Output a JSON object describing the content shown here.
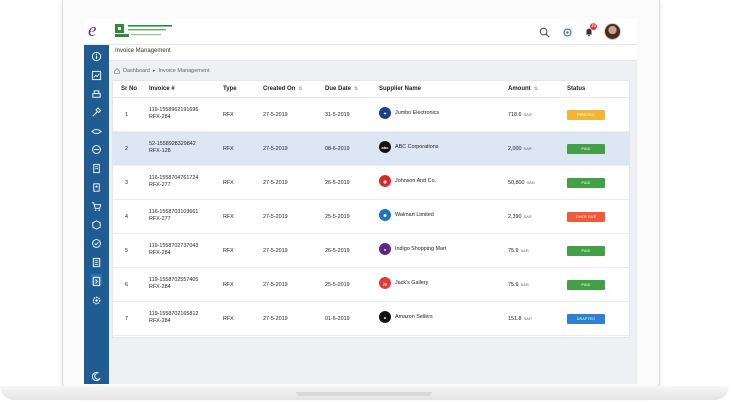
{
  "app": {
    "brand_letter": "e",
    "page_title": "Invoice Management"
  },
  "breadcrumb": {
    "items": [
      "Dashboard",
      "Invoice Management"
    ]
  },
  "notifications": {
    "count": "10"
  },
  "table": {
    "headers": [
      "Sr No",
      "Invoice #",
      "Type",
      "Created On",
      "Due Date",
      "Supplier Name",
      "Amount",
      "Status"
    ],
    "rows": [
      {
        "sr": "1",
        "inv1": "119-1558962191696",
        "inv2": "RFX-284",
        "type": "RFX",
        "created": "27-5-2019",
        "due": "31-5-2019",
        "supplier": "Jumbo Electronics",
        "amount": "718.6",
        "currency": "SAR",
        "status": "PENDING"
      },
      {
        "sr": "2",
        "inv1": "52-1558928329842",
        "inv2": "RFX-128",
        "type": "RFX",
        "created": "27-5-2019",
        "due": "08-6-2019",
        "supplier": "ABC Corporations",
        "amount": "2,000",
        "currency": "SAR",
        "status": "PAID"
      },
      {
        "sr": "3",
        "inv1": "116-1558704761724",
        "inv2": "RFX-277",
        "type": "RFX",
        "created": "27-5-2019",
        "due": "26-5-2019",
        "supplier": "Johnson And Co.",
        "amount": "50,800",
        "currency": "SAR",
        "status": "PAID"
      },
      {
        "sr": "4",
        "inv1": "116-1558703103661",
        "inv2": "RFX-277",
        "type": "RFX",
        "created": "27-5-2019",
        "due": "25-5-2019",
        "supplier": "Walmart Limited",
        "amount": "2,390",
        "currency": "SAR",
        "status": "OVER DUE"
      },
      {
        "sr": "5",
        "inv1": "119-1558702737043",
        "inv2": "RFX-284",
        "type": "RFX",
        "created": "27-5-2019",
        "due": "26-5-2019",
        "supplier": "Indigo Shopping Mart",
        "amount": "75.9",
        "currency": "SAR",
        "status": "PAID"
      },
      {
        "sr": "6",
        "inv1": "119-1558702557405",
        "inv2": "RFX-284",
        "type": "RFX",
        "created": "27-5-2019",
        "due": "25-5-2019",
        "supplier": "Jack's Gallery",
        "amount": "75.9",
        "currency": "SAR",
        "status": "PAID"
      },
      {
        "sr": "7",
        "inv1": "119-1558702165812",
        "inv2": "RFX-284",
        "type": "RFX",
        "created": "27-5-2019",
        "due": "01-6-2019",
        "supplier": "Amazon Sellers",
        "amount": "151.8",
        "currency": "SAR",
        "status": "DRAFTED"
      }
    ]
  },
  "status_colors": {
    "PENDING": "#f2b632",
    "PAID": "#43a047",
    "OVER DUE": "#ef5b3a",
    "DRAFTED": "#2f80d1"
  },
  "supplier_logos": [
    "#1e3f8a",
    "#111111",
    "#d62b2b",
    "#1e73be",
    "#5b2a86",
    "#e53935",
    "#111111"
  ],
  "colors": {
    "sidebar": "#1f5c92",
    "selected_row": "#dde6f3"
  }
}
